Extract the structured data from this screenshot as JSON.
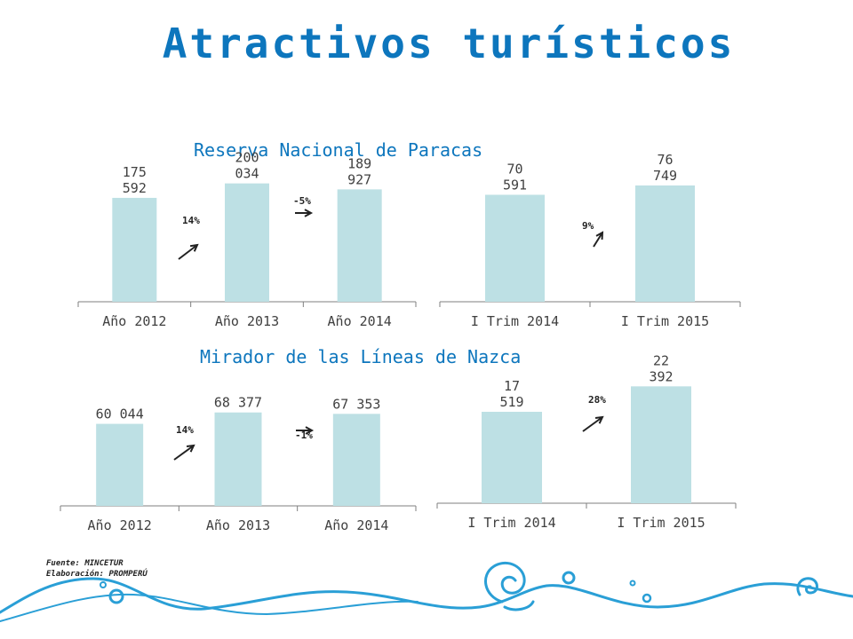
{
  "page": {
    "title": "Atractivos turísticos",
    "subtitle_paracas": "Reserva Nacional de Paracas",
    "subtitle_nazca": "Mirador de las Líneas de Nazca",
    "source_line1": "Fuente: MINCETUR",
    "source_line2": "Elaboración: PROMPERÚ"
  },
  "colors": {
    "title": "#0d76bd",
    "bar": "#bde0e4",
    "axis": "#7f7f7f",
    "text": "#404040"
  },
  "chart_data": [
    {
      "type": "bar",
      "categories": [
        "Año 2012",
        "Año 2013",
        "Año 2014"
      ],
      "values": [
        175592,
        200034,
        189927
      ],
      "data_labels": [
        [
          "175",
          "592"
        ],
        [
          "200",
          "034"
        ],
        [
          "189",
          "927"
        ]
      ],
      "annotations": [
        {
          "text": "14%",
          "arrow": "up"
        },
        {
          "text": "-5%",
          "arrow": "right"
        }
      ],
      "ylim": [
        0,
        210000
      ]
    },
    {
      "type": "bar",
      "categories": [
        "I Trim 2014",
        "I Trim 2015"
      ],
      "values": [
        70591,
        76749
      ],
      "data_labels": [
        [
          "70",
          "591"
        ],
        [
          "76",
          "749"
        ]
      ],
      "annotations": [
        {
          "text": "9%",
          "arrow": "up"
        }
      ],
      "ylim": [
        0,
        82000
      ]
    },
    {
      "type": "bar",
      "categories": [
        "Año 2012",
        "Año 2013",
        "Año 2014"
      ],
      "values": [
        60044,
        68377,
        67353
      ],
      "data_labels": [
        [
          "60 044"
        ],
        [
          "68 377"
        ],
        [
          "67 353"
        ]
      ],
      "annotations": [
        {
          "text": "14%",
          "arrow": "up"
        },
        {
          "text": "-1%",
          "arrow": "right"
        }
      ],
      "ylim": [
        0,
        76000
      ]
    },
    {
      "type": "bar",
      "categories": [
        "I Trim 2014",
        "I Trim 2015"
      ],
      "values": [
        17519,
        22392
      ],
      "data_labels": [
        [
          "17",
          "519"
        ],
        [
          "22",
          "392"
        ]
      ],
      "annotations": [
        {
          "text": "28%",
          "arrow": "up"
        }
      ],
      "ylim": [
        0,
        25000
      ]
    }
  ]
}
